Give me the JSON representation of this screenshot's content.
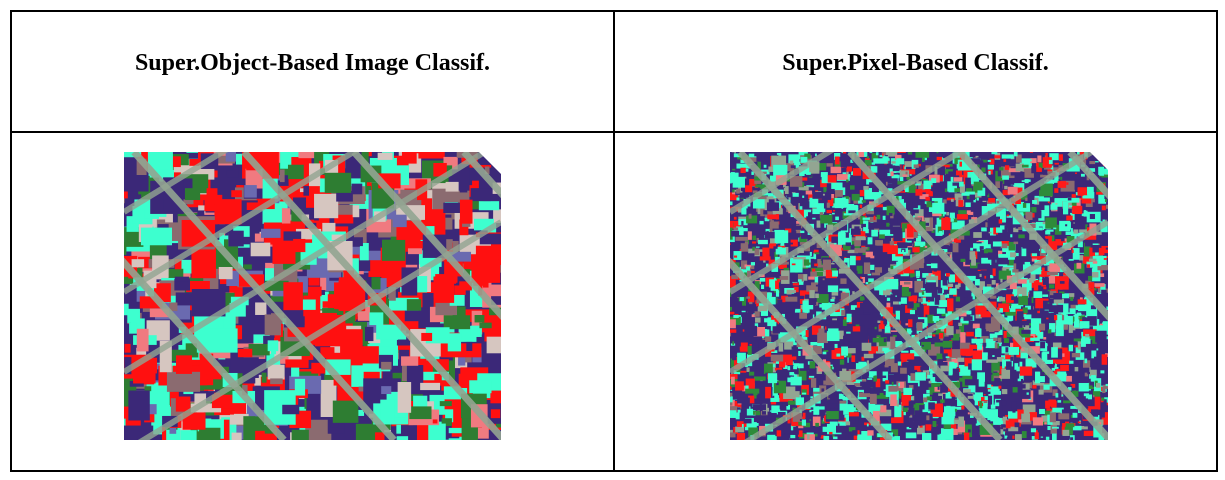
{
  "table": {
    "header": [
      "Super.Object-Based Image Classif.",
      "Super.Pixel-Based Classif."
    ]
  }
}
